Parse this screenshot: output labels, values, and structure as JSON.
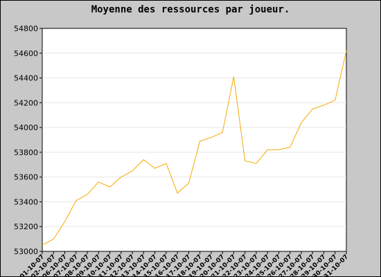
{
  "chart_data": {
    "type": "line",
    "title": "Moyenne des ressources par joueur.",
    "xlabel": "",
    "ylabel": "",
    "ylim": [
      53000,
      54800
    ],
    "yticks": [
      53000,
      53200,
      53400,
      53600,
      53800,
      54000,
      54200,
      54400,
      54600,
      54800
    ],
    "grid": "horizontal",
    "line_color": "#f5a800",
    "categories": [
      "01-10-07",
      "02-10-07",
      "06-10-07",
      "07-10-07",
      "08-10-07",
      "09-10-07",
      "10-10-07",
      "11-10-07",
      "12-10-07",
      "13-10-07",
      "14-10-07",
      "15-10-07",
      "16-10-07",
      "17-10-07",
      "18-10-07",
      "19-10-07",
      "20-10-07",
      "21-10-07",
      "22-10-07",
      "23-10-07",
      "24-10-07",
      "25-10-07",
      "26-10-07",
      "27-10-07",
      "28-10-07",
      "29-10-07",
      "30-10-07",
      "31-10-07"
    ],
    "values": [
      53050,
      53100,
      53240,
      53410,
      53460,
      53560,
      53520,
      53600,
      53650,
      53740,
      53670,
      53710,
      53470,
      53550,
      53890,
      53920,
      53960,
      54410,
      53730,
      53710,
      53820,
      53820,
      53840,
      54040,
      54150,
      54180,
      54220,
      54620
    ]
  }
}
